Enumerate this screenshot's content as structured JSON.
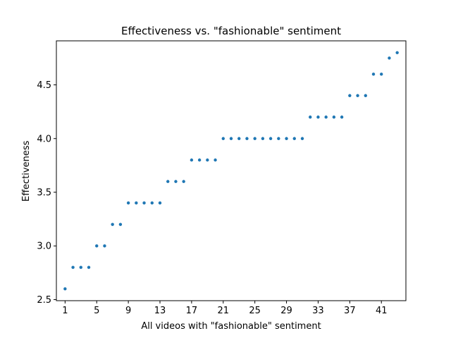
{
  "chart_data": {
    "type": "scatter",
    "title": "Effectiveness vs. \"fashionable\" sentiment",
    "xlabel": "All videos with \"fashionable\" sentiment",
    "ylabel": "Effectiveness",
    "xlim": [
      -0.1,
      44.1
    ],
    "ylim": [
      2.49,
      4.91
    ],
    "xticks": [
      1,
      5,
      9,
      13,
      17,
      21,
      25,
      29,
      33,
      37,
      41
    ],
    "yticks": [
      2.5,
      3.0,
      3.5,
      4.0,
      4.5
    ],
    "ytick_labels": [
      "2.5",
      "3.0",
      "3.5",
      "4.0",
      "4.5"
    ],
    "grid": false,
    "marker_color": "#1f77b4",
    "x": [
      1,
      2,
      3,
      4,
      5,
      6,
      7,
      8,
      9,
      10,
      11,
      12,
      13,
      14,
      15,
      16,
      17,
      18,
      19,
      20,
      21,
      22,
      23,
      24,
      25,
      26,
      27,
      28,
      29,
      30,
      31,
      32,
      33,
      34,
      35,
      36,
      37,
      38,
      39,
      40,
      41,
      42,
      43
    ],
    "y": [
      2.6,
      2.8,
      2.8,
      2.8,
      3.0,
      3.0,
      3.2,
      3.2,
      3.4,
      3.4,
      3.4,
      3.4,
      3.4,
      3.6,
      3.6,
      3.6,
      3.8,
      3.8,
      3.8,
      3.8,
      4.0,
      4.0,
      4.0,
      4.0,
      4.0,
      4.0,
      4.0,
      4.0,
      4.0,
      4.0,
      4.0,
      4.2,
      4.2,
      4.2,
      4.2,
      4.2,
      4.4,
      4.4,
      4.4,
      4.6,
      4.6,
      4.75,
      4.8
    ]
  }
}
